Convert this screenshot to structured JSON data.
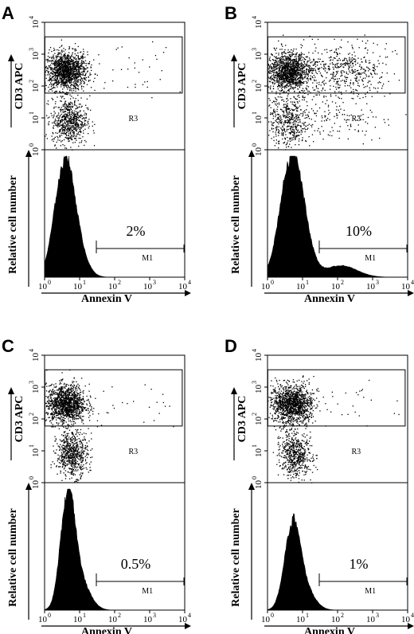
{
  "colors": {
    "ink": "#000000",
    "background": "#ffffff"
  },
  "chart_data": [
    {
      "panel": "A",
      "type": "scatter+histogram",
      "dot_plot": {
        "ylabel": "CD3 APC",
        "gate_label": "R3",
        "x_scale": "log",
        "y_scale": "log",
        "xlim": [
          1,
          10000
        ],
        "ylim": [
          1,
          10000
        ],
        "populations": [
          {
            "cx": 4,
            "cy": 300,
            "sx": 0.3,
            "sy": 0.3,
            "n": 1400
          },
          {
            "cx": 5,
            "cy": 8,
            "sx": 0.25,
            "sy": 0.35,
            "n": 650
          },
          {
            "cx": 400,
            "cy": 300,
            "sx": 0.9,
            "sy": 0.45,
            "n": 40
          }
        ]
      },
      "histogram": {
        "xlabel": "Annexin V",
        "ylabel": "Relative cell number",
        "marker_label": "M1",
        "percent_label": "2%",
        "x_scale": "log",
        "xlim": [
          1,
          10000
        ],
        "peak_x": 3.5,
        "peak_height": 0.95,
        "peak_width": 0.27,
        "tail_height": 0.0
      },
      "x_ticks": [
        "10",
        "10",
        "10",
        "10",
        "10"
      ],
      "x_tick_exponents": [
        "0",
        "1",
        "2",
        "3",
        "4"
      ],
      "y_ticks": [
        "10",
        "10",
        "10",
        "10",
        "10"
      ],
      "y_tick_exponents": [
        "0",
        "1",
        "2",
        "3",
        "4"
      ]
    },
    {
      "panel": "B",
      "type": "scatter+histogram",
      "dot_plot": {
        "ylabel": "CD3 APC",
        "gate_label": "R3",
        "x_scale": "log",
        "y_scale": "log",
        "xlim": [
          1,
          10000
        ],
        "ylim": [
          1,
          10000
        ],
        "populations": [
          {
            "cx": 4,
            "cy": 300,
            "sx": 0.3,
            "sy": 0.3,
            "n": 1300
          },
          {
            "cx": 4,
            "cy": 8,
            "sx": 0.3,
            "sy": 0.4,
            "n": 500
          },
          {
            "cx": 150,
            "cy": 300,
            "sx": 0.6,
            "sy": 0.4,
            "n": 500
          },
          {
            "cx": 150,
            "cy": 10,
            "sx": 0.7,
            "sy": 0.45,
            "n": 120
          }
        ]
      },
      "histogram": {
        "xlabel": "Annexin V",
        "ylabel": "Relative cell number",
        "marker_label": "M1",
        "percent_label": "10%",
        "x_scale": "log",
        "xlim": [
          1,
          10000
        ],
        "peak_x": 4.5,
        "peak_height": 1.0,
        "peak_width": 0.3,
        "tail_height": 0.1
      },
      "x_ticks": [
        "10",
        "10",
        "10",
        "10",
        "10"
      ],
      "x_tick_exponents": [
        "0",
        "1",
        "2",
        "3",
        "4"
      ],
      "y_ticks": [
        "10",
        "10",
        "10",
        "10",
        "10"
      ],
      "y_tick_exponents": [
        "0",
        "1",
        "2",
        "3",
        "4"
      ]
    },
    {
      "panel": "C",
      "type": "scatter+histogram",
      "dot_plot": {
        "ylabel": "CD3 APC",
        "gate_label": "R3",
        "x_scale": "log",
        "y_scale": "log",
        "xlim": [
          1,
          10000
        ],
        "ylim": [
          1,
          10000
        ],
        "populations": [
          {
            "cx": 4,
            "cy": 300,
            "sx": 0.28,
            "sy": 0.3,
            "n": 1300
          },
          {
            "cx": 6,
            "cy": 8,
            "sx": 0.22,
            "sy": 0.35,
            "n": 650
          },
          {
            "cx": 400,
            "cy": 300,
            "sx": 0.9,
            "sy": 0.4,
            "n": 25
          }
        ]
      },
      "histogram": {
        "xlabel": "Annexin V",
        "ylabel": "Relative cell number",
        "marker_label": "M1",
        "percent_label": "0.5%",
        "x_scale": "log",
        "xlim": [
          1,
          10000
        ],
        "peak_x": 4.5,
        "peak_height": 1.0,
        "peak_width": 0.2,
        "tail_height": 0.0
      },
      "x_ticks": [
        "10",
        "10",
        "10",
        "10",
        "10"
      ],
      "x_tick_exponents": [
        "0",
        "1",
        "2",
        "3",
        "4"
      ],
      "y_ticks": [
        "10",
        "10",
        "10",
        "10",
        "10"
      ],
      "y_tick_exponents": [
        "0",
        "1",
        "2",
        "3",
        "4"
      ]
    },
    {
      "panel": "D",
      "type": "scatter+histogram",
      "dot_plot": {
        "ylabel": "CD3 APC",
        "gate_label": "R3",
        "x_scale": "log",
        "y_scale": "log",
        "xlim": [
          1,
          10000
        ],
        "ylim": [
          1,
          10000
        ],
        "populations": [
          {
            "cx": 5,
            "cy": 300,
            "sx": 0.3,
            "sy": 0.3,
            "n": 1300
          },
          {
            "cx": 6,
            "cy": 8,
            "sx": 0.22,
            "sy": 0.35,
            "n": 600
          },
          {
            "cx": 400,
            "cy": 300,
            "sx": 0.9,
            "sy": 0.4,
            "n": 25
          }
        ]
      },
      "histogram": {
        "xlabel": "Annexin V",
        "ylabel": "Relative cell number",
        "marker_label": "M1",
        "percent_label": "1%",
        "x_scale": "log",
        "xlim": [
          1,
          10000
        ],
        "peak_x": 5,
        "peak_height": 0.72,
        "peak_width": 0.22,
        "tail_height": 0.0
      },
      "x_ticks": [
        "10",
        "10",
        "10",
        "10",
        "10"
      ],
      "x_tick_exponents": [
        "0",
        "1",
        "2",
        "3",
        "4"
      ],
      "y_ticks": [
        "10",
        "10",
        "10",
        "10",
        "10"
      ],
      "y_tick_exponents": [
        "0",
        "1",
        "2",
        "3",
        "4"
      ]
    }
  ]
}
